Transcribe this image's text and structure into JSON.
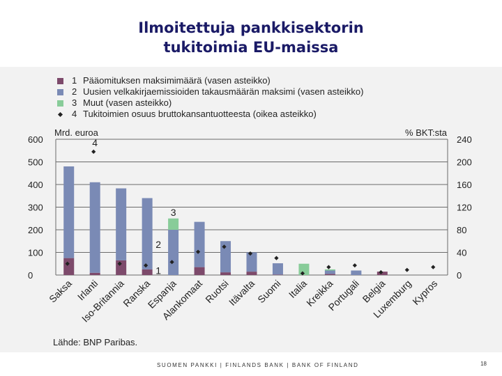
{
  "title_line1": "Ilmoitettuja pankkisektorin",
  "title_line2": "tukitoimia EU-maissa",
  "source": "Lähde: BNP Paribas.",
  "footer": "SUOMEN PANKKI | FINLANDS BANK | BANK OF FINLAND",
  "page_number": "18",
  "legend": [
    {
      "num": "1",
      "label": "Pääomituksen maksimimäärä (vasen asteikko)",
      "color": "#7d4a6b"
    },
    {
      "num": "2",
      "label": "Uusien velkakirjaemissioiden takausmäärän maksimi (vasen asteikko)",
      "color": "#7a8ab5"
    },
    {
      "num": "3",
      "label": "Muut (vasen asteikko)",
      "color": "#88cc99"
    },
    {
      "num": "4",
      "label": "Tukitoimien osuus bruttokansantuotteesta (oikea asteikko)",
      "color": "#222222"
    }
  ],
  "chart_data": {
    "type": "bar",
    "stacked": true,
    "ylabel_left": "Mrd. euroa",
    "ylabel_right": "% BKT:sta",
    "ylim_left": [
      0,
      600
    ],
    "ylim_right": [
      0,
      240
    ],
    "yticks_left": [
      0,
      100,
      200,
      300,
      400,
      500,
      600
    ],
    "yticks_right": [
      0,
      40,
      80,
      120,
      160,
      200,
      240
    ],
    "grid": true,
    "categories": [
      "Saksa",
      "Irlanti",
      "Iso-Britannia",
      "Ranska",
      "Espanja",
      "Alankomaat",
      "Ruotsi",
      "Itävalta",
      "Suomi",
      "Italia",
      "Kreikka",
      "Portugali",
      "Belgia",
      "Luxemburg",
      "Kypros"
    ],
    "series": [
      {
        "name": "1",
        "axis": "left",
        "values": [
          75,
          10,
          65,
          25,
          0,
          35,
          12,
          15,
          2,
          0,
          5,
          0,
          15,
          0,
          0
        ]
      },
      {
        "name": "2",
        "axis": "left",
        "values": [
          405,
          400,
          318,
          315,
          200,
          200,
          138,
          85,
          50,
          0,
          15,
          20,
          0,
          0,
          0
        ]
      },
      {
        "name": "3",
        "axis": "left",
        "values": [
          0,
          0,
          0,
          0,
          50,
          0,
          0,
          0,
          0,
          50,
          5,
          0,
          0,
          0,
          0
        ]
      },
      {
        "name": "4",
        "axis": "right",
        "type": "scatter",
        "values": [
          20,
          218,
          20,
          17,
          23,
          41,
          50,
          38,
          30,
          3,
          14,
          17,
          5,
          9,
          14
        ]
      }
    ],
    "annotations": [
      {
        "text": "4",
        "category": "Irlanti"
      },
      {
        "text": "2",
        "category": "Ranska"
      },
      {
        "text": "3",
        "category": "Espanja"
      },
      {
        "text": "1",
        "category": "Ranska"
      }
    ]
  }
}
